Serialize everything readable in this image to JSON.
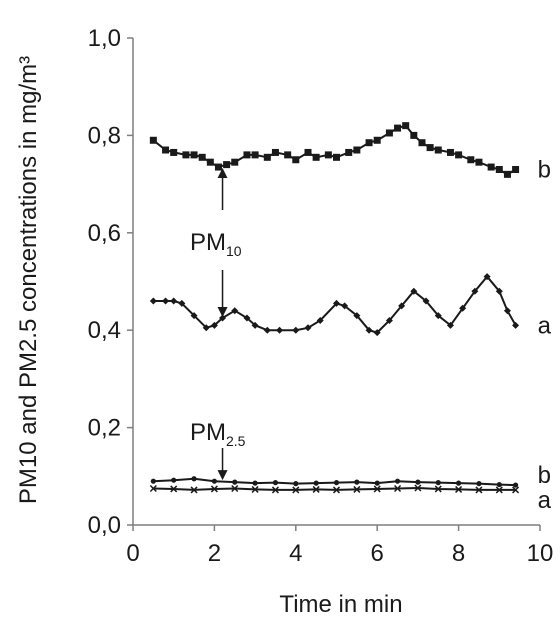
{
  "chart_data": {
    "type": "line",
    "xlabel": "Time in min",
    "ylabel": "PM10 and PM2.5 concentrations in mg/m³",
    "xlim": [
      0,
      10
    ],
    "ylim": [
      0,
      1.0
    ],
    "x_ticks": [
      "0",
      "2",
      "4",
      "6",
      "8",
      "10"
    ],
    "y_ticks": [
      "0,0",
      "0,2",
      "0,4",
      "0,6",
      "0,8",
      "1,0"
    ],
    "grid": false,
    "legend": "none",
    "series": [
      {
        "name": "b",
        "marker": "square",
        "color": "#1a1a1a",
        "x": [
          0.5,
          0.8,
          1.0,
          1.3,
          1.5,
          1.7,
          1.9,
          2.1,
          2.3,
          2.5,
          2.8,
          3.0,
          3.3,
          3.5,
          3.8,
          4.0,
          4.3,
          4.5,
          4.8,
          5.0,
          5.3,
          5.5,
          5.8,
          6.0,
          6.3,
          6.5,
          6.7,
          6.9,
          7.1,
          7.3,
          7.5,
          7.8,
          8.0,
          8.3,
          8.5,
          8.8,
          9.0,
          9.2,
          9.4
        ],
        "y": [
          0.79,
          0.77,
          0.765,
          0.76,
          0.76,
          0.755,
          0.745,
          0.735,
          0.74,
          0.745,
          0.76,
          0.76,
          0.755,
          0.765,
          0.76,
          0.75,
          0.765,
          0.755,
          0.76,
          0.755,
          0.765,
          0.77,
          0.785,
          0.79,
          0.805,
          0.815,
          0.82,
          0.8,
          0.785,
          0.775,
          0.77,
          0.765,
          0.76,
          0.75,
          0.745,
          0.735,
          0.73,
          0.72,
          0.73
        ]
      },
      {
        "name": "a",
        "marker": "diamond",
        "color": "#1a1a1a",
        "x": [
          0.5,
          0.8,
          1.0,
          1.2,
          1.5,
          1.8,
          2.0,
          2.2,
          2.5,
          2.8,
          3.0,
          3.3,
          3.6,
          4.0,
          4.3,
          4.6,
          5.0,
          5.2,
          5.5,
          5.8,
          6.0,
          6.3,
          6.6,
          6.9,
          7.2,
          7.5,
          7.8,
          8.1,
          8.4,
          8.7,
          9.0,
          9.2,
          9.4
        ],
        "y": [
          0.46,
          0.46,
          0.46,
          0.455,
          0.43,
          0.405,
          0.41,
          0.425,
          0.44,
          0.425,
          0.41,
          0.4,
          0.4,
          0.4,
          0.405,
          0.42,
          0.455,
          0.45,
          0.43,
          0.4,
          0.395,
          0.42,
          0.45,
          0.48,
          0.46,
          0.43,
          0.41,
          0.445,
          0.48,
          0.51,
          0.48,
          0.44,
          0.41
        ]
      },
      {
        "name": "b",
        "marker": "dot",
        "color": "#1a1a1a",
        "x": [
          0.5,
          1.0,
          1.5,
          2.0,
          2.5,
          3.0,
          3.5,
          4.0,
          4.5,
          5.0,
          5.5,
          6.0,
          6.5,
          7.0,
          7.5,
          8.0,
          8.5,
          9.0,
          9.4
        ],
        "y": [
          0.09,
          0.092,
          0.095,
          0.09,
          0.088,
          0.086,
          0.087,
          0.085,
          0.086,
          0.087,
          0.088,
          0.086,
          0.09,
          0.088,
          0.087,
          0.086,
          0.085,
          0.083,
          0.082
        ]
      },
      {
        "name": "a",
        "marker": "cross",
        "color": "#1a1a1a",
        "x": [
          0.5,
          1.0,
          1.5,
          2.0,
          2.5,
          3.0,
          3.5,
          4.0,
          4.5,
          5.0,
          5.5,
          6.0,
          6.5,
          7.0,
          7.5,
          8.0,
          8.5,
          9.0,
          9.4
        ],
        "y": [
          0.075,
          0.074,
          0.072,
          0.074,
          0.075,
          0.073,
          0.072,
          0.072,
          0.073,
          0.072,
          0.073,
          0.074,
          0.075,
          0.076,
          0.074,
          0.073,
          0.072,
          0.072,
          0.072
        ]
      }
    ],
    "annotations": [
      {
        "text": "PM",
        "subscript": "10",
        "arrow_up_to": {
          "x": 2.2,
          "y": 0.735
        },
        "arrow_down_to": {
          "x": 2.2,
          "y": 0.425
        }
      },
      {
        "text": "PM",
        "subscript": "2.5",
        "arrow_down_to": {
          "x": 2.2,
          "y": 0.09
        }
      }
    ]
  }
}
